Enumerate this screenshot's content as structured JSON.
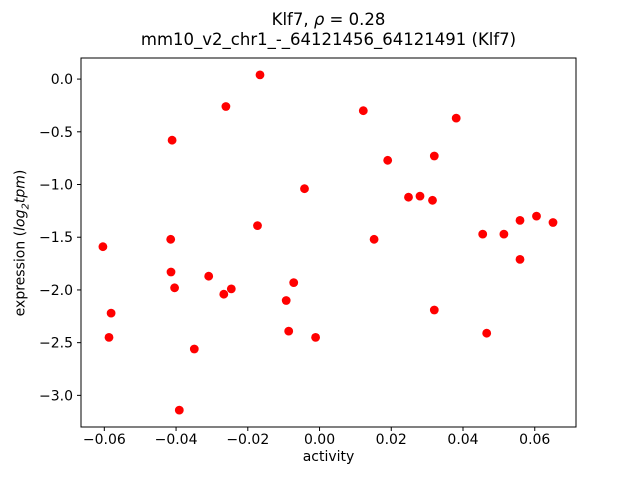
{
  "chart_data": {
    "type": "scatter",
    "title_parts": {
      "prefix": "Klf7, ",
      "rho": "ρ",
      "suffix": " = 0.28"
    },
    "subtitle": "mm10_v2_chr1_-_64121456_64121491 (Klf7)",
    "xlabel": "activity",
    "ylabel_parts": {
      "prefix": "expression (",
      "log": "log",
      "sub": "2",
      "rest": "tpm",
      "suffix": ")"
    },
    "marker_color": "#ff0000",
    "axis_color": "#000000",
    "legend": "none",
    "grid": false,
    "xlim": [
      -0.0665,
      0.0715
    ],
    "ylim": [
      -3.3,
      0.2
    ],
    "x_ticks": {
      "values": [
        -0.06,
        -0.04,
        -0.02,
        0.0,
        0.02,
        0.04,
        0.06
      ],
      "labels": [
        "−0.06",
        "−0.04",
        "−0.02",
        "0.00",
        "0.02",
        "0.04",
        "0.06"
      ]
    },
    "y_ticks": {
      "values": [
        0.0,
        -0.5,
        -1.0,
        -1.5,
        -2.0,
        -2.5,
        -3.0
      ],
      "labels": [
        "0.0",
        "−0.5",
        "−1.0",
        "−1.5",
        "−2.0",
        "−2.5",
        "−3.0"
      ]
    },
    "points": [
      [
        -0.0166,
        0.04
      ],
      [
        -0.0261,
        -0.26
      ],
      [
        -0.0411,
        -0.58
      ],
      [
        -0.0042,
        -1.04
      ],
      [
        -0.0173,
        -1.39
      ],
      [
        -0.0415,
        -1.52
      ],
      [
        -0.0604,
        -1.59
      ],
      [
        0.0122,
        -0.3
      ],
      [
        0.0381,
        -0.37
      ],
      [
        0.019,
        -0.77
      ],
      [
        0.032,
        -0.73
      ],
      [
        0.0248,
        -1.12
      ],
      [
        0.028,
        -1.11
      ],
      [
        0.0315,
        -1.15
      ],
      [
        0.0559,
        -1.34
      ],
      [
        0.0605,
        -1.3
      ],
      [
        0.0651,
        -1.36
      ],
      [
        0.0455,
        -1.47
      ],
      [
        0.0514,
        -1.47
      ],
      [
        0.0152,
        -1.52
      ],
      [
        -0.0414,
        -1.83
      ],
      [
        -0.0404,
        -1.98
      ],
      [
        -0.0309,
        -1.87
      ],
      [
        -0.0267,
        -2.04
      ],
      [
        -0.0246,
        -1.99
      ],
      [
        -0.0072,
        -1.93
      ],
      [
        -0.0093,
        -2.1
      ],
      [
        -0.0581,
        -2.22
      ],
      [
        -0.0587,
        -2.45
      ],
      [
        -0.0086,
        -2.39
      ],
      [
        -0.0011,
        -2.45
      ],
      [
        -0.0349,
        -2.56
      ],
      [
        -0.0391,
        -3.14
      ],
      [
        0.0559,
        -1.71
      ],
      [
        0.032,
        -2.19
      ],
      [
        0.0466,
        -2.41
      ]
    ]
  }
}
